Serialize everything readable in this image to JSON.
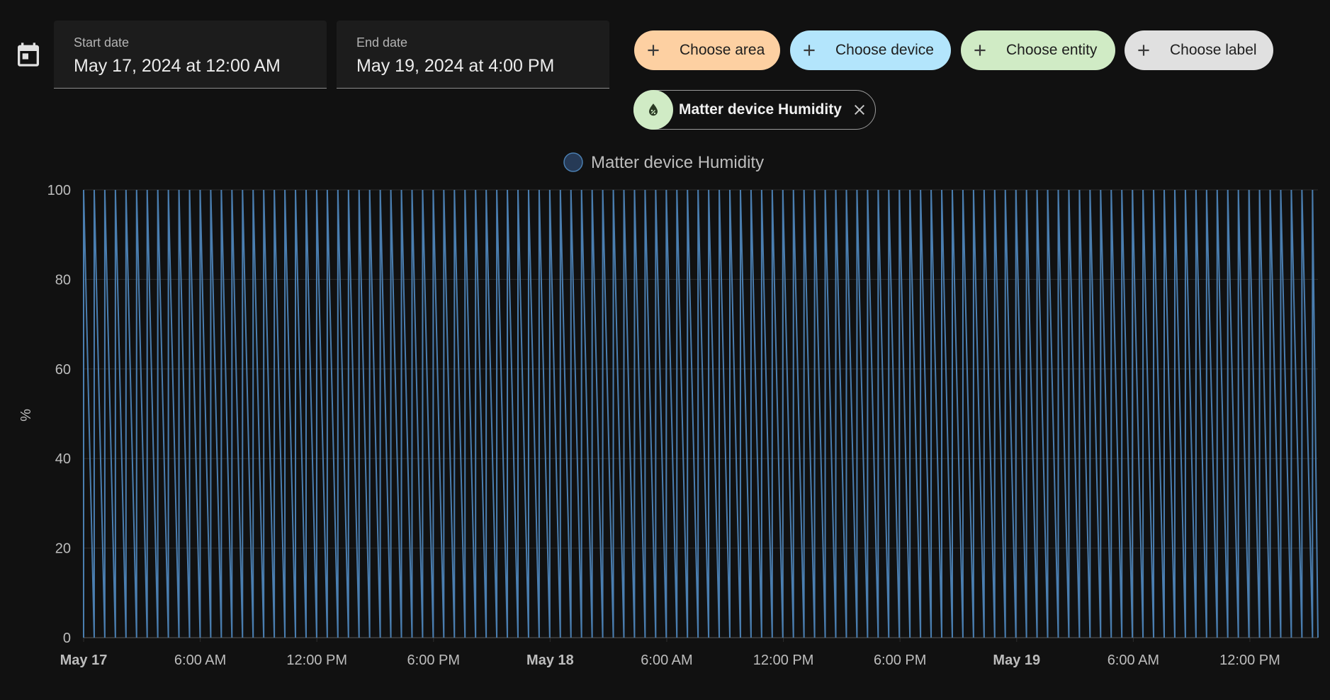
{
  "date_range": {
    "start": {
      "label": "Start date",
      "value": "May 17, 2024 at 12:00 AM"
    },
    "end": {
      "label": "End date",
      "value": "May 19, 2024 at 4:00 PM"
    }
  },
  "target_picker": {
    "choose_area": "Choose area",
    "choose_device": "Choose device",
    "choose_entity": "Choose entity",
    "choose_label": "Choose label",
    "selected": [
      {
        "name": "Matter device Humidity",
        "icon": "water-percent-icon"
      }
    ]
  },
  "colors": {
    "background": "#111111",
    "series": "#4a7eb0",
    "area_chip": "#fdd0a2",
    "device_chip": "#b3e5fc",
    "entity_chip": "#d0ebc5",
    "label_chip": "#e0e0e0"
  },
  "chart_data": {
    "type": "line",
    "legend": [
      "Matter device Humidity"
    ],
    "ylabel": "%",
    "ylim": [
      0,
      100
    ],
    "y_ticks": [
      "100",
      "80",
      "60",
      "40",
      "20",
      "0"
    ],
    "x_ticks": [
      {
        "label": "May 17",
        "bold": true
      },
      {
        "label": "6:00 AM",
        "bold": false
      },
      {
        "label": "12:00 PM",
        "bold": false
      },
      {
        "label": "6:00 PM",
        "bold": false
      },
      {
        "label": "May 18",
        "bold": true
      },
      {
        "label": "6:00 AM",
        "bold": false
      },
      {
        "label": "12:00 PM",
        "bold": false
      },
      {
        "label": "6:00 PM",
        "bold": false
      },
      {
        "label": "May 19",
        "bold": true
      },
      {
        "label": "6:00 AM",
        "bold": false
      },
      {
        "label": "12:00 PM",
        "bold": false
      }
    ],
    "xlim_hours": [
      0,
      63.5
    ],
    "series": [
      {
        "name": "Matter device Humidity",
        "pattern": "sawtooth",
        "min": 0,
        "max": 100,
        "period_hours": 0.545
      }
    ],
    "grid": true
  }
}
